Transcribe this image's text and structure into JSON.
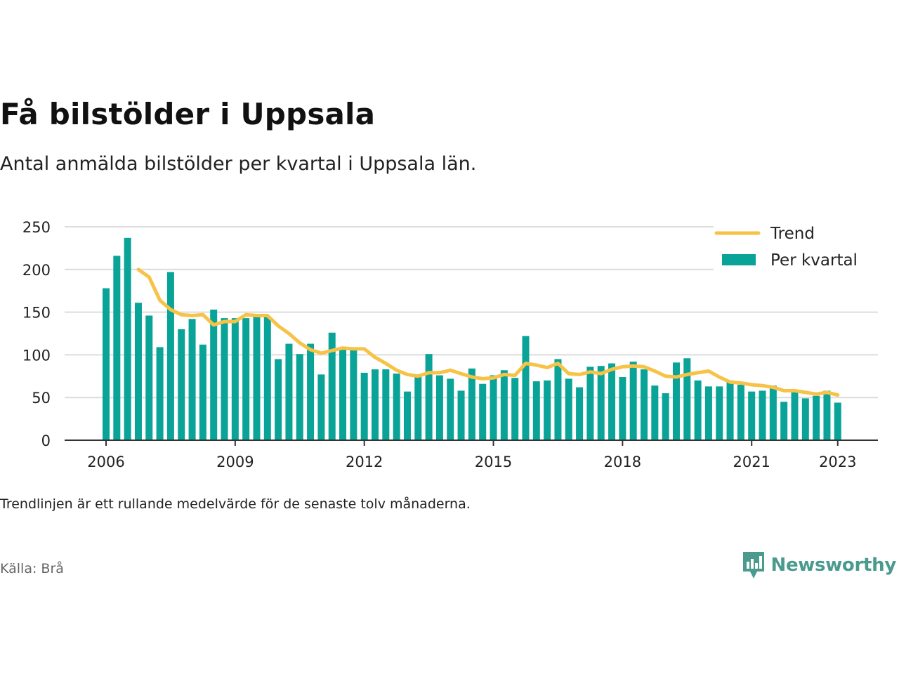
{
  "title": "Få bilstölder i Uppsala",
  "subtitle": "Antal anmälda bilstölder per kvartal i Uppsala län.",
  "note": "Trendlinjen är ett rullande medelvärde för de senaste tolv månaderna.",
  "source": "Källa: Brå",
  "brand": {
    "name": "Newsworthy",
    "icon": "newsworthy-logo-icon",
    "color": "#4a9a8e"
  },
  "colors": {
    "bars": "#0aa398",
    "trend": "#f7c347",
    "grid": "#dcdcdc",
    "axis": "#333333"
  },
  "chart_data": {
    "type": "bar",
    "x_start": "2006 Q1",
    "x_ticks": [
      "2006",
      "2009",
      "2012",
      "2015",
      "2018",
      "2021",
      "2023"
    ],
    "y_ticks": [
      "0",
      "50",
      "100",
      "150",
      "200",
      "250"
    ],
    "ylim": [
      0,
      250
    ],
    "grid": true,
    "legend_position": "top-right",
    "series": [
      {
        "name": "Per kvartal",
        "type": "bar",
        "values": [
          178,
          216,
          237,
          161,
          146,
          109,
          197,
          130,
          142,
          112,
          153,
          143,
          143,
          143,
          146,
          144,
          95,
          113,
          101,
          113,
          77,
          126,
          109,
          106,
          79,
          83,
          83,
          78,
          57,
          74,
          101,
          76,
          72,
          58,
          84,
          66,
          76,
          82,
          73,
          122,
          69,
          70,
          95,
          72,
          62,
          86,
          87,
          90,
          74,
          92,
          83,
          64,
          55,
          91,
          96,
          70,
          63,
          63,
          70,
          65,
          57,
          58,
          64,
          45,
          56,
          49,
          52,
          58,
          44
        ]
      },
      {
        "name": "Trend",
        "type": "line",
        "values": [
          null,
          null,
          null,
          200,
          191,
          164,
          153,
          147,
          146,
          147,
          135,
          139,
          139,
          147,
          146,
          146,
          134,
          125,
          114,
          106,
          102,
          105,
          108,
          107,
          107,
          97,
          90,
          82,
          77,
          75,
          79,
          79,
          82,
          78,
          74,
          72,
          73,
          77,
          76,
          90,
          88,
          85,
          90,
          78,
          77,
          80,
          78,
          83,
          86,
          87,
          86,
          81,
          75,
          74,
          77,
          79,
          81,
          74,
          68,
          67,
          65,
          64,
          62,
          58,
          58,
          56,
          54,
          56,
          53
        ]
      }
    ]
  }
}
